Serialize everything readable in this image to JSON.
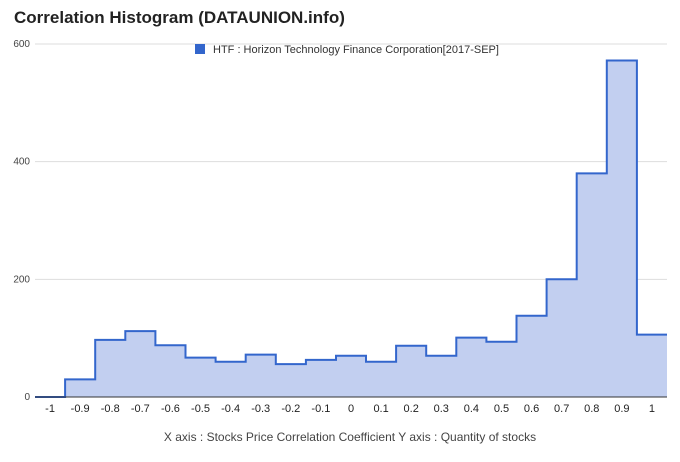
{
  "chart_data": {
    "type": "area",
    "title": "Correlation Histogram (DATAUNION.info)",
    "legend": {
      "label": "HTF : Horizon Technology Finance Corporation[2017-SEP]",
      "placement": "top-center"
    },
    "xlabel": "X axis : Stocks Price Correlation Coefficient  Y axis : Quantity of stocks",
    "ylabel": "",
    "xlim": [
      -1.05,
      1.05
    ],
    "ylim": [
      0,
      600
    ],
    "y_ticks": [
      0,
      200,
      400,
      600
    ],
    "x_ticks": [
      -1,
      -0.9,
      -0.8,
      -0.7,
      -0.6,
      -0.5,
      -0.4,
      -0.3,
      -0.2,
      -0.1,
      0,
      0.1,
      0.2,
      0.3,
      0.4,
      0.5,
      0.6,
      0.7,
      0.8,
      0.9,
      1
    ],
    "x_tick_labels": [
      "-1",
      "-0.9",
      "-0.8",
      "-0.7",
      "-0.6",
      "-0.5",
      "-0.4",
      "-0.3",
      "-0.2",
      "-0.1",
      "0",
      "0.1",
      "0.2",
      "0.3",
      "0.4",
      "0.5",
      "0.6",
      "0.7",
      "0.8",
      "0.9",
      "1"
    ],
    "grid": true,
    "series": [
      {
        "name": "HTF : Horizon Technology Finance Corporation[2017-SEP]",
        "x": [
          -1,
          -0.9,
          -0.8,
          -0.7,
          -0.6,
          -0.5,
          -0.4,
          -0.3,
          -0.2,
          -0.1,
          0,
          0.1,
          0.2,
          0.3,
          0.4,
          0.5,
          0.6,
          0.7,
          0.8,
          0.9,
          1
        ],
        "values": [
          0,
          30,
          97,
          112,
          88,
          67,
          60,
          72,
          56,
          63,
          70,
          60,
          87,
          70,
          101,
          94,
          138,
          200,
          380,
          572,
          106
        ]
      }
    ],
    "colors": {
      "line": "#3366cc",
      "fill": "#c2cff0",
      "grid": "#dddddd"
    }
  }
}
